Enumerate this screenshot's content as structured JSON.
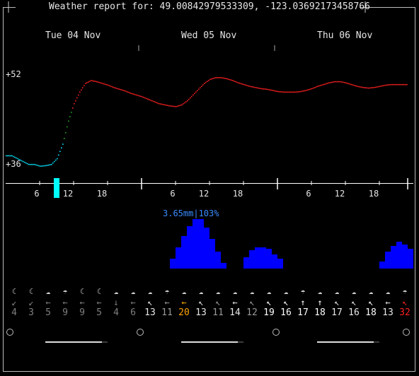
{
  "window": {
    "title": "Weather report for: 49.00842979533309, -123.03692173458766"
  },
  "days": [
    "Tue 04 Nov",
    "Wed 05 Nov",
    "Thu 06 Nov"
  ],
  "chart_data": {
    "type": "line",
    "title": "",
    "y_tick_labels": [
      "+52",
      "+36"
    ],
    "ylim": [
      36,
      52
    ],
    "x_tick_labels": [
      "6",
      "12",
      "18",
      "6",
      "12",
      "18",
      "6",
      "12",
      "18"
    ],
    "temperature": {
      "hours_from_midnight_day1": [
        0,
        1,
        2,
        3,
        4,
        5,
        6,
        7,
        8,
        9,
        10,
        11,
        12,
        13,
        14,
        15,
        16,
        17,
        18,
        19,
        20,
        21,
        22,
        23,
        24,
        25,
        26,
        27,
        28,
        29,
        30,
        31,
        32,
        33,
        34,
        35,
        36,
        37,
        38,
        39,
        40,
        41,
        42,
        43,
        44,
        45,
        46,
        47,
        48,
        49,
        50,
        51,
        52,
        53,
        54,
        55,
        56,
        57,
        58,
        59,
        60,
        61,
        62,
        63,
        64,
        65,
        66,
        67,
        68,
        69,
        70,
        71
      ],
      "values": [
        38,
        38,
        37.5,
        37,
        36.5,
        36.5,
        36.2,
        36.3,
        36.5,
        37.5,
        40,
        44,
        47,
        49,
        50.5,
        51,
        50.8,
        50.5,
        50.2,
        49.8,
        49.5,
        49.2,
        48.8,
        48.5,
        48.2,
        47.8,
        47.4,
        47,
        46.8,
        46.6,
        46.5,
        46.8,
        47.5,
        48.5,
        49.5,
        50.5,
        51.2,
        51.5,
        51.5,
        51.3,
        51,
        50.6,
        50.3,
        50,
        49.8,
        49.6,
        49.5,
        49.3,
        49.1,
        49,
        49,
        49,
        49.1,
        49.3,
        49.6,
        50,
        50.3,
        50.6,
        50.8,
        50.8,
        50.6,
        50.3,
        50,
        49.8,
        49.7,
        49.8,
        50,
        50.2,
        50.3,
        50.3,
        50.3,
        50.3
      ],
      "current_hour_marker": 9
    },
    "precipitation": {
      "label": "3.65mm|103%",
      "unit": "mm",
      "total_mm": 3.65,
      "probability_max_pct": 103
    }
  },
  "hourly": {
    "weather_icons": [
      "☾",
      "☾",
      "☁",
      "☂",
      "☾",
      "☾",
      "☁",
      "☁",
      "☁",
      "☂",
      "☁",
      "☁",
      "☁",
      "☁",
      "☁",
      "☁",
      "☁",
      "☂",
      "☁",
      "☁",
      "☁",
      "☁",
      "☁",
      "☂"
    ],
    "wind_arrows": [
      "↙",
      "↙",
      "←",
      "←",
      "←",
      "←",
      "↓",
      "←",
      "↖",
      "←",
      "←",
      "↖",
      "↖",
      "←",
      "↖",
      "↖",
      "↖",
      "↑",
      "↑",
      "↖",
      "↖",
      "↖",
      "←",
      "↖"
    ],
    "wind_speeds": [
      "4",
      "3",
      "5",
      "9",
      "9",
      "5",
      "4",
      "6",
      "13",
      "11",
      "20",
      "13",
      "11",
      "14",
      "12",
      "19",
      "16",
      "17",
      "18",
      "17",
      "16",
      "18",
      "13",
      "32"
    ],
    "wind_colors": [
      "#7f7f7f",
      "#7f7f7f",
      "#7f7f7f",
      "#7f7f7f",
      "#7f7f7f",
      "#7f7f7f",
      "#7f7f7f",
      "#7f7f7f",
      "#e6e6e6",
      "#9a9a9a",
      "#ffa500",
      "#e6e6e6",
      "#9a9a9a",
      "#e6e6e6",
      "#9a9a9a",
      "#ffffff",
      "#ffffff",
      "#ffffff",
      "#ffffff",
      "#e6e6e6",
      "#e6e6e6",
      "#ffffff",
      "#e6e6e6",
      "#ff2020"
    ]
  },
  "colors": {
    "background": "#000000",
    "temp_cold": "#00e5ff",
    "temp_mid": "#22aa22",
    "temp_warm": "#ff2020",
    "precip_bar": "#0000ff",
    "precip_label": "#3b8cff",
    "current_hour": "#00ffff",
    "axis": "#ffffff"
  }
}
